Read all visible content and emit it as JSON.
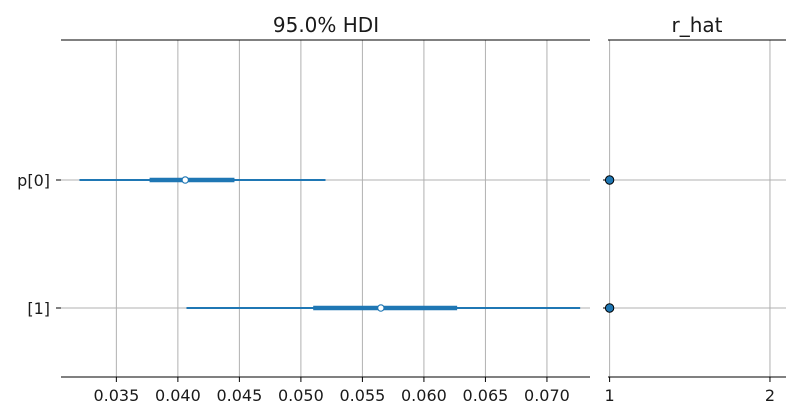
{
  "chart_data": [
    {
      "type": "forest",
      "title": "95.0% HDI",
      "row_labels": [
        "p[0]",
        "[1]"
      ],
      "xlim": [
        0.0305,
        0.0735
      ],
      "xticks": [
        0.035,
        0.04,
        0.045,
        0.05,
        0.055,
        0.06,
        0.065,
        0.07
      ],
      "xtick_labels": [
        "0.035",
        "0.040",
        "0.045",
        "0.050",
        "0.055",
        "0.060",
        "0.065",
        "0.070"
      ],
      "grid": true,
      "color": "#1f77b4",
      "series": [
        {
          "label": "p[0]",
          "hdi_low": 0.032,
          "hdi_high": 0.052,
          "iqr_low": 0.0377,
          "iqr_high": 0.0446,
          "point": 0.0406
        },
        {
          "label": "[1]",
          "hdi_low": 0.0407,
          "hdi_high": 0.0727,
          "iqr_low": 0.051,
          "iqr_high": 0.0627,
          "point": 0.0565
        }
      ]
    },
    {
      "type": "scatter",
      "title": "r_hat",
      "xlim": [
        0.99,
        2.1
      ],
      "xticks": [
        1,
        2
      ],
      "xtick_labels": [
        "1",
        "2"
      ],
      "grid": true,
      "marker_color": "#1f77b4",
      "values": [
        1.0,
        1.0
      ]
    }
  ]
}
